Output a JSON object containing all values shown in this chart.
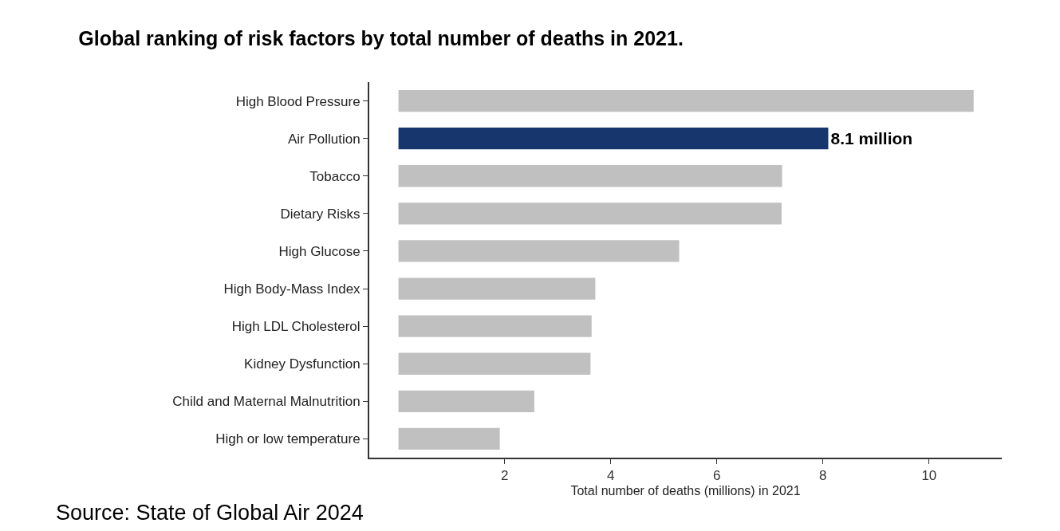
{
  "chart_data": {
    "type": "bar",
    "orientation": "horizontal",
    "title": "Global ranking of risk factors by total number of deaths in 2021.",
    "xlabel": "Total number of deaths (millions) in 2021",
    "categories": [
      "High Blood Pressure",
      "Air Pollution",
      "Tobacco",
      "Dietary Risks",
      "High Glucose",
      "High Body-Mass Index",
      "High LDL Cholesterol",
      "Kidney Dysfunction",
      "Child and Maternal Malnutrition",
      "High or low temperature"
    ],
    "values": [
      10.84,
      8.1,
      7.23,
      7.22,
      5.29,
      3.71,
      3.64,
      3.62,
      2.56,
      1.91
    ],
    "colors": [
      "#c0c0c0",
      "#17366e",
      "#c0c0c0",
      "#c0c0c0",
      "#c0c0c0",
      "#c0c0c0",
      "#c0c0c0",
      "#c0c0c0",
      "#c0c0c0",
      "#c0c0c0"
    ],
    "value_labels": [
      null,
      "8.1 million",
      null,
      null,
      null,
      null,
      null,
      null,
      null,
      null
    ],
    "xlim": [
      -0.55,
      11.37
    ],
    "xticks": [
      2,
      4,
      6,
      8,
      10
    ],
    "legend": false,
    "annotations": [
      "Source: State of Global Air 2024"
    ]
  }
}
